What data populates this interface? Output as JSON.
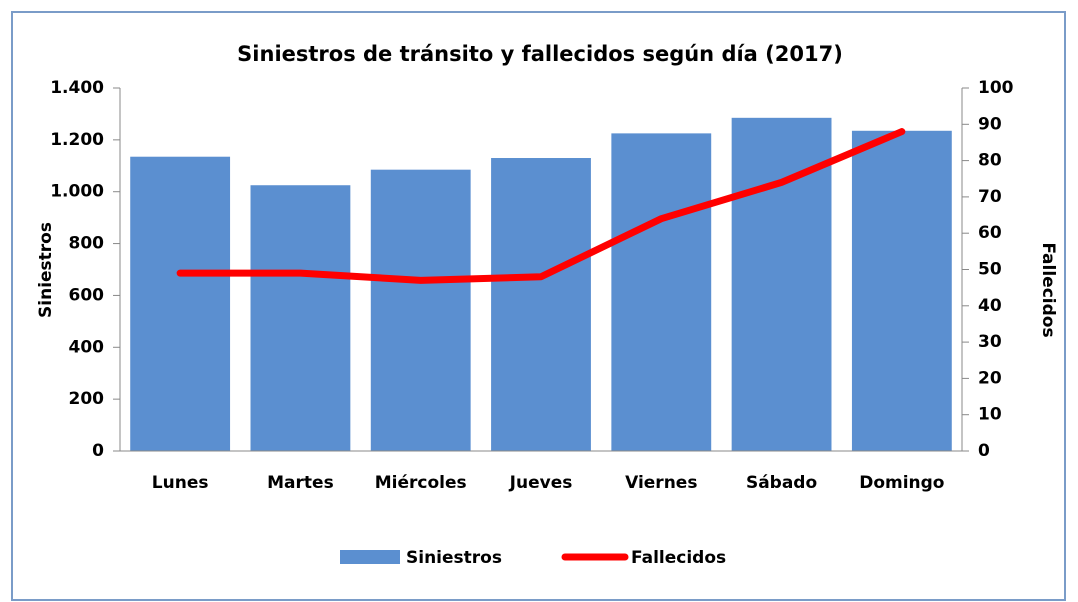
{
  "chart_data": {
    "type": "bar",
    "title": "Siniestros de tránsito y fallecidos según día (2017)",
    "ylabel": "Siniestros",
    "y2label": "Fallecidos",
    "categories": [
      "Lunes",
      "Martes",
      "Miércoles",
      "Jueves",
      "Viernes",
      "Sábado",
      "Domingo"
    ],
    "series": [
      {
        "name": "Siniestros",
        "color": "#5b8fd0",
        "values": [
          1135,
          1025,
          1085,
          1130,
          1225,
          1285,
          1235
        ]
      },
      {
        "name": "Fallecidos",
        "color": "#ff0000",
        "type": "line",
        "axis": "y2",
        "values": [
          49,
          49,
          47,
          48,
          64,
          74,
          88
        ]
      }
    ],
    "ylim": [
      0,
      1400
    ],
    "yticks": [
      0,
      200,
      400,
      600,
      800,
      {
        "value": 1000,
        "label": "1.000"
      },
      {
        "value": 1200,
        "label": "1.200"
      },
      {
        "value": 1400,
        "label": "1.400"
      }
    ],
    "y2lim": [
      0,
      100
    ],
    "y2ticks": [
      0,
      10,
      20,
      30,
      40,
      50,
      60,
      70,
      80,
      90,
      100
    ],
    "grid": false,
    "legend": "bottom"
  }
}
